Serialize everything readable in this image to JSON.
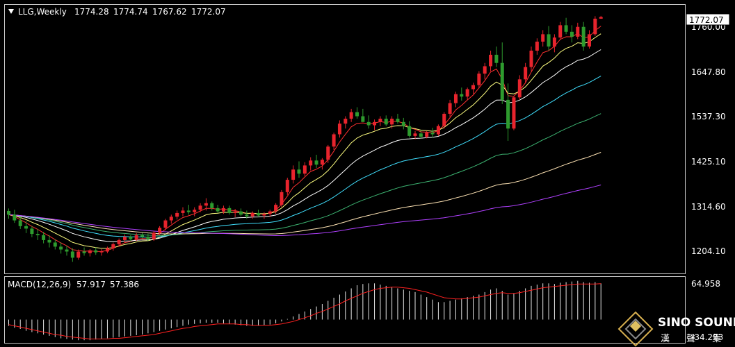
{
  "header": {
    "symbol": "LLG,Weekly",
    "open": "1774.28",
    "high": "1774.74",
    "low": "1767.62",
    "close": "1772.07"
  },
  "price_axis": {
    "ticks": [
      "1204.10",
      "1314.60",
      "1425.10",
      "1537.30",
      "1647.80",
      "1760.00"
    ],
    "current_price": "1772.07"
  },
  "macd": {
    "label": "MACD(12,26,9)",
    "value1": "57.917",
    "value2": "57.386",
    "axis_top": "64.958",
    "axis_bottom": "-34.273"
  },
  "watermark": {
    "name": "SINO SOUND",
    "sub": "漢 聲 集 團"
  },
  "colors": {
    "background": "#000000",
    "bull": "#e8242d",
    "bear": "#2e9b2e",
    "ma_fast": "#ff3030",
    "ma_yellow": "#ffff80",
    "ma_white": "#ffffff",
    "ma_cyan": "#40e0ff",
    "ma_green": "#3cb371",
    "ma_cream": "#ffe4b5",
    "ma_purple": "#b040ff",
    "macd_signal": "#ff2020"
  },
  "chart_data": {
    "type": "candlestick",
    "title": "LLG,Weekly",
    "ylim": [
      1150,
      1800
    ],
    "ohlc": [
      [
        1299,
        1305,
        1280,
        1290
      ],
      [
        1290,
        1302,
        1270,
        1276
      ],
      [
        1276,
        1285,
        1255,
        1262
      ],
      [
        1262,
        1275,
        1245,
        1256
      ],
      [
        1256,
        1262,
        1235,
        1243
      ],
      [
        1243,
        1255,
        1228,
        1240
      ],
      [
        1240,
        1248,
        1220,
        1228
      ],
      [
        1228,
        1240,
        1210,
        1222
      ],
      [
        1222,
        1230,
        1205,
        1212
      ],
      [
        1212,
        1222,
        1195,
        1205
      ],
      [
        1205,
        1215,
        1190,
        1200
      ],
      [
        1200,
        1208,
        1175,
        1185
      ],
      [
        1185,
        1205,
        1180,
        1200
      ],
      [
        1200,
        1210,
        1190,
        1196
      ],
      [
        1196,
        1206,
        1188,
        1203
      ],
      [
        1203,
        1210,
        1192,
        1198
      ],
      [
        1198,
        1206,
        1190,
        1200
      ],
      [
        1200,
        1212,
        1196,
        1208
      ],
      [
        1208,
        1222,
        1202,
        1218
      ],
      [
        1218,
        1232,
        1212,
        1228
      ],
      [
        1228,
        1242,
        1222,
        1236
      ],
      [
        1236,
        1240,
        1225,
        1230
      ],
      [
        1230,
        1245,
        1226,
        1240
      ],
      [
        1240,
        1246,
        1232,
        1236
      ],
      [
        1236,
        1244,
        1226,
        1230
      ],
      [
        1230,
        1250,
        1226,
        1246
      ],
      [
        1246,
        1262,
        1240,
        1258
      ],
      [
        1258,
        1280,
        1252,
        1276
      ],
      [
        1276,
        1290,
        1268,
        1285
      ],
      [
        1285,
        1300,
        1278,
        1294
      ],
      [
        1294,
        1308,
        1286,
        1300
      ],
      [
        1300,
        1314,
        1290,
        1296
      ],
      [
        1296,
        1308,
        1286,
        1302
      ],
      [
        1302,
        1318,
        1296,
        1312
      ],
      [
        1312,
        1330,
        1300,
        1318
      ],
      [
        1318,
        1322,
        1300,
        1306
      ],
      [
        1306,
        1314,
        1294,
        1298
      ],
      [
        1298,
        1312,
        1292,
        1306
      ],
      [
        1306,
        1312,
        1290,
        1294
      ],
      [
        1294,
        1304,
        1284,
        1298
      ],
      [
        1298,
        1305,
        1286,
        1290
      ],
      [
        1290,
        1300,
        1280,
        1286
      ],
      [
        1286,
        1298,
        1280,
        1294
      ],
      [
        1294,
        1302,
        1284,
        1288
      ],
      [
        1288,
        1296,
        1280,
        1292
      ],
      [
        1292,
        1302,
        1284,
        1298
      ],
      [
        1298,
        1318,
        1292,
        1314
      ],
      [
        1314,
        1350,
        1308,
        1345
      ],
      [
        1345,
        1380,
        1338,
        1375
      ],
      [
        1375,
        1410,
        1366,
        1400
      ],
      [
        1400,
        1420,
        1380,
        1390
      ],
      [
        1390,
        1418,
        1384,
        1410
      ],
      [
        1410,
        1430,
        1398,
        1422
      ],
      [
        1422,
        1436,
        1404,
        1412
      ],
      [
        1412,
        1428,
        1400,
        1424
      ],
      [
        1424,
        1460,
        1416,
        1456
      ],
      [
        1456,
        1490,
        1448,
        1486
      ],
      [
        1486,
        1520,
        1478,
        1512
      ],
      [
        1512,
        1530,
        1500,
        1524
      ],
      [
        1524,
        1548,
        1516,
        1540
      ],
      [
        1540,
        1552,
        1524,
        1530
      ],
      [
        1530,
        1548,
        1518,
        1516
      ],
      [
        1516,
        1532,
        1500,
        1508
      ],
      [
        1508,
        1522,
        1496,
        1516
      ],
      [
        1516,
        1530,
        1506,
        1524
      ],
      [
        1524,
        1532,
        1506,
        1510
      ],
      [
        1510,
        1530,
        1500,
        1524
      ],
      [
        1524,
        1536,
        1512,
        1516
      ],
      [
        1516,
        1526,
        1498,
        1506
      ],
      [
        1506,
        1518,
        1478,
        1482
      ],
      [
        1482,
        1494,
        1474,
        1488
      ],
      [
        1488,
        1496,
        1476,
        1480
      ],
      [
        1480,
        1494,
        1476,
        1490
      ],
      [
        1490,
        1502,
        1478,
        1486
      ],
      [
        1486,
        1510,
        1482,
        1506
      ],
      [
        1506,
        1540,
        1500,
        1536
      ],
      [
        1536,
        1570,
        1528,
        1562
      ],
      [
        1562,
        1590,
        1552,
        1584
      ],
      [
        1584,
        1600,
        1568,
        1578
      ],
      [
        1578,
        1600,
        1570,
        1596
      ],
      [
        1596,
        1612,
        1584,
        1606
      ],
      [
        1606,
        1640,
        1598,
        1634
      ],
      [
        1634,
        1660,
        1620,
        1652
      ],
      [
        1652,
        1690,
        1640,
        1680
      ],
      [
        1680,
        1700,
        1650,
        1660
      ],
      [
        1660,
        1710,
        1560,
        1570
      ],
      [
        1570,
        1610,
        1470,
        1500
      ],
      [
        1500,
        1580,
        1496,
        1576
      ],
      [
        1576,
        1630,
        1570,
        1620
      ],
      [
        1620,
        1660,
        1610,
        1650
      ],
      [
        1650,
        1700,
        1640,
        1690
      ],
      [
        1690,
        1720,
        1680,
        1712
      ],
      [
        1712,
        1740,
        1700,
        1730
      ],
      [
        1730,
        1750,
        1690,
        1700
      ],
      [
        1700,
        1730,
        1686,
        1722
      ],
      [
        1722,
        1760,
        1716,
        1752
      ],
      [
        1752,
        1770,
        1730,
        1736
      ],
      [
        1736,
        1752,
        1710,
        1724
      ],
      [
        1724,
        1758,
        1718,
        1748
      ],
      [
        1748,
        1760,
        1690,
        1700
      ],
      [
        1700,
        1740,
        1695,
        1730
      ],
      [
        1730,
        1774,
        1726,
        1768
      ],
      [
        1768,
        1774.74,
        1767.62,
        1772.07
      ]
    ],
    "macd_histogram": [
      -10,
      -13,
      -15,
      -18,
      -20,
      -22,
      -24,
      -26,
      -28,
      -30,
      -31,
      -32,
      -33,
      -33,
      -33,
      -32,
      -31,
      -30,
      -29,
      -28,
      -27,
      -26,
      -25,
      -24,
      -22,
      -20,
      -18,
      -16,
      -14,
      -12,
      -10,
      -8,
      -7,
      -6,
      -5,
      -5,
      -5,
      -6,
      -7,
      -8,
      -9,
      -10,
      -10,
      -10,
      -9,
      -8,
      -6,
      -3,
      1,
      5,
      9,
      13,
      17,
      21,
      25,
      30,
      35,
      40,
      45,
      50,
      55,
      57,
      58,
      58,
      56,
      54,
      52,
      50,
      48,
      46,
      44,
      40,
      36,
      32,
      28,
      28,
      30,
      32,
      34,
      36,
      38,
      40,
      44,
      48,
      50,
      46,
      40,
      42,
      46,
      50,
      54,
      56,
      58,
      58,
      57,
      59,
      60,
      61,
      62,
      60,
      59,
      60,
      58
    ],
    "macd_signal": [
      -8,
      -10,
      -12,
      -14,
      -16,
      -18,
      -20,
      -22,
      -24,
      -25,
      -27,
      -28,
      -29,
      -30,
      -31,
      -31,
      -31,
      -31,
      -30,
      -30,
      -29,
      -28,
      -27,
      -26,
      -25,
      -24,
      -22,
      -20,
      -18,
      -16,
      -14,
      -13,
      -11,
      -10,
      -9,
      -8,
      -7,
      -7,
      -7,
      -7,
      -8,
      -8,
      -9,
      -9,
      -9,
      -9,
      -8,
      -7,
      -5,
      -3,
      0,
      3,
      6,
      10,
      13,
      17,
      21,
      25,
      30,
      34,
      38,
      42,
      45,
      48,
      50,
      51,
      52,
      52,
      51,
      50,
      48,
      46,
      44,
      41,
      38,
      35,
      34,
      33,
      33,
      34,
      35,
      36,
      38,
      40,
      42,
      43,
      42,
      42,
      43,
      45,
      47,
      49,
      51,
      52,
      53,
      54,
      55,
      56,
      57,
      57,
      57,
      57,
      57.4
    ],
    "moving_averages": [
      {
        "color": "ma_fast",
        "period": 5
      },
      {
        "color": "ma_yellow",
        "period": 10
      },
      {
        "color": "ma_white",
        "period": 20
      },
      {
        "color": "ma_cyan",
        "period": 34
      },
      {
        "color": "ma_green",
        "period": 55
      },
      {
        "color": "ma_cream",
        "period": 89
      },
      {
        "color": "ma_purple",
        "period": 144
      }
    ]
  }
}
